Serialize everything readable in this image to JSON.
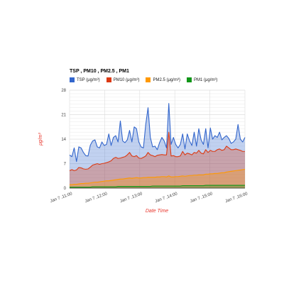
{
  "chart_data": {
    "type": "area",
    "title": "TSP , PM10 , PM2.5 , PM1",
    "xlabel": "Date Time",
    "ylabel": "μg/m³",
    "ylim": [
      0,
      28
    ],
    "yticks": [
      "0",
      "7",
      "14",
      "21",
      "28"
    ],
    "xtick_labels": [
      "Jan 7 ,11:00",
      "Jan 7 ,12:00",
      "Jan 7 ,13:00",
      "Jan 7 ,14:00",
      "Jan 7 ,15:00",
      "Jan 7 ,16:00"
    ],
    "grid": true,
    "legend_position": "top-left",
    "x_start": "Jan 7 ,11:00",
    "x_end": "Jan 7 ,16:00",
    "series": [
      {
        "name": "TSP (μg/m³)",
        "color": "#3366cc",
        "values": [
          9.5,
          9.0,
          11.5,
          7.6,
          11.8,
          11.5,
          10.2,
          9.3,
          9.2,
          12.3,
          13.5,
          13.8,
          11.8,
          11.5,
          13.2,
          12.2,
          12.5,
          15.5,
          12.2,
          14.5,
          15.0,
          13.2,
          19.2,
          13.5,
          13.0,
          13.8,
          16.5,
          13.2,
          17.5,
          17.0,
          13.2,
          11.8,
          11.5,
          18.2,
          23.0,
          14.5,
          11.8,
          12.0,
          11.0,
          13.0,
          14.5,
          13.5,
          11.5,
          24.2,
          12.5,
          14.5,
          12.5,
          11.5,
          12.5,
          15.5,
          11.2,
          15.5,
          13.5,
          12.2,
          16.0,
          12.0,
          17.0,
          13.8,
          12.5,
          17.0,
          11.5,
          17.2,
          14.0,
          15.0,
          14.5,
          16.0,
          13.8,
          14.5,
          15.0,
          14.2,
          12.8,
          13.2,
          14.0,
          18.2,
          14.0,
          13.2,
          14.5
        ]
      },
      {
        "name": "PM10 (μg/m³)",
        "color": "#dc3912",
        "values": [
          5.0,
          5.3,
          5.0,
          5.2,
          5.9,
          5.8,
          5.5,
          5.4,
          5.5,
          6.0,
          6.6,
          6.8,
          7.0,
          6.8,
          7.0,
          7.1,
          7.3,
          7.5,
          7.8,
          8.5,
          8.8,
          8.5,
          8.6,
          8.8,
          9.0,
          9.5,
          10.2,
          9.2,
          9.0,
          9.3,
          8.6,
          8.5,
          8.8,
          9.2,
          10.2,
          9.5,
          9.3,
          9.0,
          9.4,
          9.5,
          9.6,
          9.5,
          9.5,
          16.0,
          9.2,
          9.3,
          9.0,
          9.0,
          9.2,
          10.5,
          9.5,
          10.0,
          9.8,
          9.5,
          10.2,
          10.0,
          10.8,
          10.0,
          9.8,
          11.0,
          10.2,
          10.8,
          10.5,
          10.5,
          11.0,
          11.2,
          10.8,
          11.0,
          12.0,
          11.5,
          11.0,
          11.0,
          11.2,
          11.0,
          10.8,
          10.5,
          10.5
        ]
      },
      {
        "name": "PM2.5 (μg/m³)",
        "color": "#ff9900",
        "values": [
          1.0,
          1.0,
          1.1,
          1.1,
          1.2,
          1.3,
          1.3,
          1.4,
          1.4,
          1.5,
          1.6,
          1.7,
          1.7,
          1.8,
          1.9,
          2.0,
          2.1,
          2.1,
          2.2,
          2.3,
          2.4,
          2.5,
          2.6,
          2.6,
          2.7,
          2.8,
          2.9,
          2.8,
          2.9,
          3.0,
          2.9,
          2.9,
          3.0,
          3.0,
          3.1,
          3.1,
          3.1,
          3.1,
          3.2,
          3.2,
          3.3,
          3.3,
          3.2,
          3.5,
          3.2,
          3.2,
          3.3,
          3.3,
          3.4,
          3.5,
          3.4,
          3.5,
          3.6,
          3.6,
          3.7,
          3.7,
          3.8,
          3.8,
          3.8,
          4.0,
          4.0,
          4.1,
          4.1,
          4.2,
          4.2,
          4.3,
          4.4,
          4.4,
          4.6,
          4.7,
          4.8,
          4.9,
          5.0,
          5.1,
          5.2,
          5.3,
          5.4
        ]
      },
      {
        "name": "PM1 (μg/m³)",
        "color": "#109618",
        "values": [
          0.3,
          0.3,
          0.3,
          0.3,
          0.3,
          0.3,
          0.3,
          0.3,
          0.3,
          0.3,
          0.4,
          0.4,
          0.4,
          0.4,
          0.4,
          0.4,
          0.4,
          0.4,
          0.4,
          0.4,
          0.4,
          0.5,
          0.5,
          0.5,
          0.5,
          0.5,
          0.5,
          0.5,
          0.5,
          0.5,
          0.5,
          0.5,
          0.5,
          0.5,
          0.5,
          0.5,
          0.6,
          0.6,
          0.6,
          0.6,
          0.6,
          0.6,
          0.6,
          0.6,
          0.6,
          0.6,
          0.6,
          0.6,
          0.6,
          0.7,
          0.7,
          0.7,
          0.7,
          0.7,
          0.7,
          0.7,
          0.7,
          0.7,
          0.7,
          0.8,
          0.8,
          0.8,
          0.8,
          0.8,
          0.8,
          0.8,
          0.8,
          0.8,
          0.8,
          0.8,
          0.8,
          0.8,
          0.8,
          0.8,
          0.8,
          0.8,
          0.8
        ]
      }
    ]
  }
}
